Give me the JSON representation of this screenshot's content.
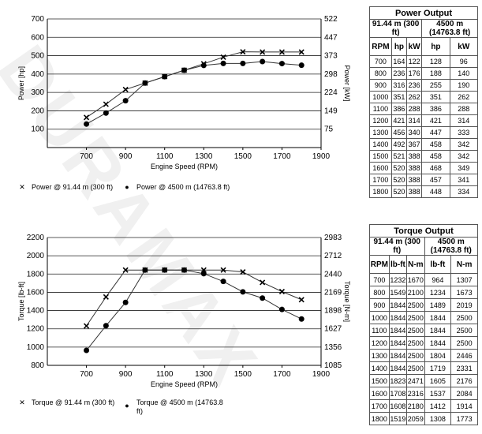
{
  "chart_data": [
    {
      "type": "line",
      "xlabel": "Engine Speed (RPM)",
      "ylabel": "Power [hp]",
      "y2label": "Power [kW]",
      "xlim": [
        500,
        1900
      ],
      "ylim": [
        0,
        700
      ],
      "xticks": [
        "700",
        "900",
        "1100",
        "1300",
        "1500",
        "1700",
        "1900"
      ],
      "yticks": [
        "100",
        "200",
        "300",
        "400",
        "500",
        "600",
        "700"
      ],
      "y2ticks": [
        "75",
        "149",
        "224",
        "298",
        "373",
        "447",
        "522"
      ],
      "x": [
        700,
        800,
        900,
        1000,
        1100,
        1200,
        1300,
        1400,
        1500,
        1600,
        1700,
        1800
      ],
      "series": [
        {
          "name": "Power @ 91.44 m (300 ft)",
          "marker": "x",
          "values": [
            164,
            236,
            316,
            351,
            386,
            421,
            456,
            492,
            521,
            520,
            520,
            520
          ]
        },
        {
          "name": "Power @ 4500 m (14763.8 ft)",
          "marker": "dot",
          "values": [
            128,
            188,
            255,
            351,
            386,
            421,
            447,
            458,
            458,
            468,
            457,
            448
          ]
        }
      ],
      "grid": true
    },
    {
      "type": "line",
      "xlabel": "Engine Speed (RPM)",
      "ylabel": "Torque [lb-ft]",
      "y2label": "Torque [N-m]",
      "xlim": [
        500,
        1900
      ],
      "ylim": [
        800,
        2200
      ],
      "xticks": [
        "700",
        "900",
        "1100",
        "1300",
        "1500",
        "1700",
        "1900"
      ],
      "yticks": [
        "800",
        "1000",
        "1200",
        "1400",
        "1600",
        "1800",
        "2000",
        "2200"
      ],
      "y2ticks": [
        "1085",
        "1356",
        "1627",
        "1898",
        "2169",
        "2440",
        "2712",
        "2983"
      ],
      "x": [
        700,
        800,
        900,
        1000,
        1100,
        1200,
        1300,
        1400,
        1500,
        1600,
        1700,
        1800
      ],
      "series": [
        {
          "name": "Torque @ 91.44 m (300 ft)",
          "marker": "x",
          "values": [
            1232,
            1549,
            1844,
            1844,
            1844,
            1844,
            1844,
            1844,
            1823,
            1708,
            1608,
            1519
          ]
        },
        {
          "name": "Torque @ 4500 m (14763.8 ft)",
          "marker": "dot",
          "values": [
            964,
            1234,
            1489,
            1844,
            1844,
            1844,
            1804,
            1719,
            1605,
            1537,
            1412,
            1308
          ]
        }
      ],
      "grid": true
    }
  ],
  "power_table": {
    "title": "Power Output",
    "col1": "91.44 m (300 ft)",
    "col2": "4500 m (14763.8 ft)",
    "headers": [
      "RPM",
      "hp",
      "kW",
      "hp",
      "kW"
    ],
    "rows": [
      [
        "700",
        "164",
        "122",
        "128",
        "96"
      ],
      [
        "800",
        "236",
        "176",
        "188",
        "140"
      ],
      [
        "900",
        "316",
        "236",
        "255",
        "190"
      ],
      [
        "1000",
        "351",
        "262",
        "351",
        "262"
      ],
      [
        "1100",
        "386",
        "288",
        "386",
        "288"
      ],
      [
        "1200",
        "421",
        "314",
        "421",
        "314"
      ],
      [
        "1300",
        "456",
        "340",
        "447",
        "333"
      ],
      [
        "1400",
        "492",
        "367",
        "458",
        "342"
      ],
      [
        "1500",
        "521",
        "388",
        "458",
        "342"
      ],
      [
        "1600",
        "520",
        "388",
        "468",
        "349"
      ],
      [
        "1700",
        "520",
        "388",
        "457",
        "341"
      ],
      [
        "1800",
        "520",
        "388",
        "448",
        "334"
      ]
    ]
  },
  "torque_table": {
    "title": "Torque Output",
    "col1": "91.44 m (300 ft)",
    "col2": "4500 m (14763.8 ft)",
    "headers": [
      "RPM",
      "lb-ft",
      "N-m",
      "lb-ft",
      "N-m"
    ],
    "rows": [
      [
        "700",
        "1232",
        "1670",
        "964",
        "1307"
      ],
      [
        "800",
        "1549",
        "2100",
        "1234",
        "1673"
      ],
      [
        "900",
        "1844",
        "2500",
        "1489",
        "2019"
      ],
      [
        "1000",
        "1844",
        "2500",
        "1844",
        "2500"
      ],
      [
        "1100",
        "1844",
        "2500",
        "1844",
        "2500"
      ],
      [
        "1200",
        "1844",
        "2500",
        "1844",
        "2500"
      ],
      [
        "1300",
        "1844",
        "2500",
        "1804",
        "2446"
      ],
      [
        "1400",
        "1844",
        "2500",
        "1719",
        "2331"
      ],
      [
        "1500",
        "1823",
        "2471",
        "1605",
        "2176"
      ],
      [
        "1600",
        "1708",
        "2316",
        "1537",
        "2084"
      ],
      [
        "1700",
        "1608",
        "2180",
        "1412",
        "1914"
      ],
      [
        "1800",
        "1519",
        "2059",
        "1308",
        "1773"
      ]
    ]
  }
}
